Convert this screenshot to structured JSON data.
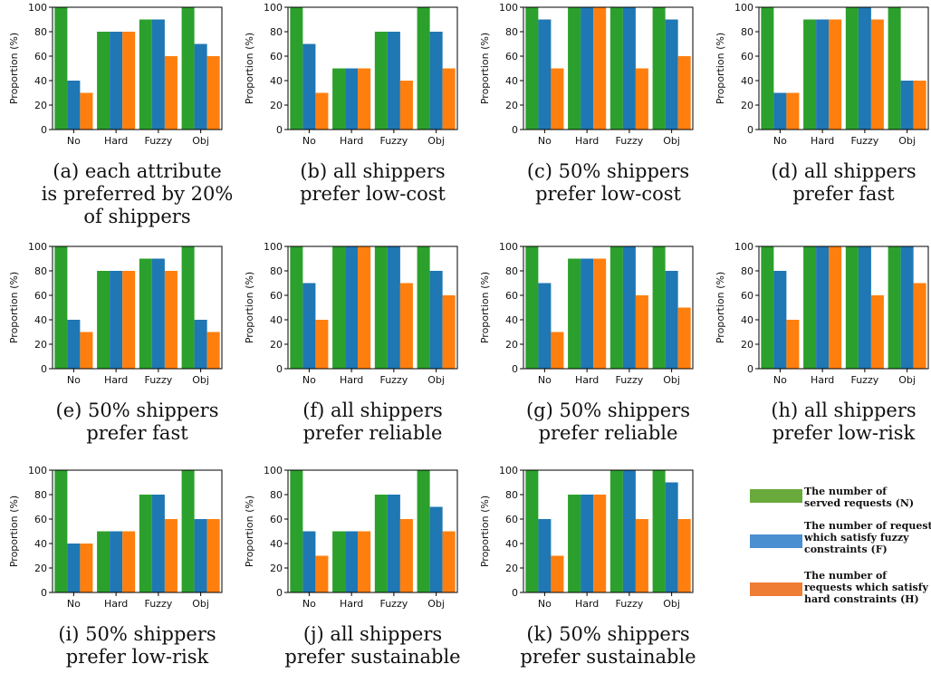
{
  "colors": {
    "N": "#2ca02c",
    "F": "#1f77b4",
    "H": "#ff7f0e",
    "axis": "#000000"
  },
  "legend": [
    {
      "key": "N",
      "line1": "The number of",
      "line2": "served requests (N)",
      "line3": "",
      "color": "#6aaa3c"
    },
    {
      "key": "F",
      "line1": "The number of requests",
      "line2": "which satisfy fuzzy",
      "line3": "constraints (F)",
      "color": "#4a8fd0"
    },
    {
      "key": "H",
      "line1": "The number of",
      "line2": "requests which satisfy",
      "line3": "hard constraints (H)",
      "color": "#ef7d33"
    }
  ],
  "chart_data": [
    {
      "type": "bar",
      "ylabel": "Proportion (%)",
      "ylim": [
        0,
        100
      ],
      "yticks": [
        0,
        20,
        40,
        60,
        80,
        100
      ],
      "categories": [
        "No",
        "Hard",
        "Fuzzy",
        "Obj"
      ],
      "caption": [
        "(a) each attribute",
        "is preferred by 20%",
        "of shippers"
      ],
      "series": [
        {
          "key": "N",
          "values": [
            100,
            80,
            90,
            100
          ]
        },
        {
          "key": "F",
          "values": [
            40,
            80,
            90,
            70
          ]
        },
        {
          "key": "H",
          "values": [
            30,
            80,
            60,
            60
          ]
        }
      ]
    },
    {
      "type": "bar",
      "ylabel": "Proportion (%)",
      "ylim": [
        0,
        100
      ],
      "yticks": [
        0,
        20,
        40,
        60,
        80,
        100
      ],
      "categories": [
        "No",
        "Hard",
        "Fuzzy",
        "Obj"
      ],
      "caption": [
        "(b) all shippers",
        "prefer low-cost"
      ],
      "series": [
        {
          "key": "N",
          "values": [
            100,
            50,
            80,
            100
          ]
        },
        {
          "key": "F",
          "values": [
            70,
            50,
            80,
            80
          ]
        },
        {
          "key": "H",
          "values": [
            30,
            50,
            40,
            50
          ]
        }
      ]
    },
    {
      "type": "bar",
      "ylabel": "Proportion (%)",
      "ylim": [
        0,
        100
      ],
      "yticks": [
        0,
        20,
        40,
        60,
        80,
        100
      ],
      "categories": [
        "No",
        "Hard",
        "Fuzzy",
        "Obj"
      ],
      "caption": [
        "(c) 50% shippers",
        "prefer low-cost"
      ],
      "series": [
        {
          "key": "N",
          "values": [
            100,
            100,
            100,
            100
          ]
        },
        {
          "key": "F",
          "values": [
            90,
            100,
            100,
            90
          ]
        },
        {
          "key": "H",
          "values": [
            50,
            100,
            50,
            60
          ]
        }
      ]
    },
    {
      "type": "bar",
      "ylabel": "Proportion (%)",
      "ylim": [
        0,
        100
      ],
      "yticks": [
        0,
        20,
        40,
        60,
        80,
        100
      ],
      "categories": [
        "No",
        "Hard",
        "Fuzzy",
        "Obj"
      ],
      "caption": [
        "(d) all shippers",
        "prefer fast"
      ],
      "series": [
        {
          "key": "N",
          "values": [
            100,
            90,
            100,
            100
          ]
        },
        {
          "key": "F",
          "values": [
            30,
            90,
            100,
            40
          ]
        },
        {
          "key": "H",
          "values": [
            30,
            90,
            90,
            40
          ]
        }
      ]
    },
    {
      "type": "bar",
      "ylabel": "Proportion (%)",
      "ylim": [
        0,
        100
      ],
      "yticks": [
        0,
        20,
        40,
        60,
        80,
        100
      ],
      "categories": [
        "No",
        "Hard",
        "Fuzzy",
        "Obj"
      ],
      "caption": [
        "(e) 50% shippers",
        "prefer fast"
      ],
      "series": [
        {
          "key": "N",
          "values": [
            100,
            80,
            90,
            100
          ]
        },
        {
          "key": "F",
          "values": [
            40,
            80,
            90,
            40
          ]
        },
        {
          "key": "H",
          "values": [
            30,
            80,
            80,
            30
          ]
        }
      ]
    },
    {
      "type": "bar",
      "ylabel": "Proportion (%)",
      "ylim": [
        0,
        100
      ],
      "yticks": [
        0,
        20,
        40,
        60,
        80,
        100
      ],
      "categories": [
        "No",
        "Hard",
        "Fuzzy",
        "Obj"
      ],
      "caption": [
        "(f) all shippers",
        "prefer reliable"
      ],
      "series": [
        {
          "key": "N",
          "values": [
            100,
            100,
            100,
            100
          ]
        },
        {
          "key": "F",
          "values": [
            70,
            100,
            100,
            80
          ]
        },
        {
          "key": "H",
          "values": [
            40,
            100,
            70,
            60
          ]
        }
      ]
    },
    {
      "type": "bar",
      "ylabel": "Proportion (%)",
      "ylim": [
        0,
        100
      ],
      "yticks": [
        0,
        20,
        40,
        60,
        80,
        100
      ],
      "categories": [
        "No",
        "Hard",
        "Fuzzy",
        "Obj"
      ],
      "caption": [
        "(g) 50% shippers",
        "prefer reliable"
      ],
      "series": [
        {
          "key": "N",
          "values": [
            100,
            90,
            100,
            100
          ]
        },
        {
          "key": "F",
          "values": [
            70,
            90,
            100,
            80
          ]
        },
        {
          "key": "H",
          "values": [
            30,
            90,
            60,
            50
          ]
        }
      ]
    },
    {
      "type": "bar",
      "ylabel": "Proportion (%)",
      "ylim": [
        0,
        100
      ],
      "yticks": [
        0,
        20,
        40,
        60,
        80,
        100
      ],
      "categories": [
        "No",
        "Hard",
        "Fuzzy",
        "Obj"
      ],
      "caption": [
        "(h) all shippers",
        "prefer low-risk"
      ],
      "series": [
        {
          "key": "N",
          "values": [
            100,
            100,
            100,
            100
          ]
        },
        {
          "key": "F",
          "values": [
            80,
            100,
            100,
            100
          ]
        },
        {
          "key": "H",
          "values": [
            40,
            100,
            60,
            70
          ]
        }
      ]
    },
    {
      "type": "bar",
      "ylabel": "Proportion (%)",
      "ylim": [
        0,
        100
      ],
      "yticks": [
        0,
        20,
        40,
        60,
        80,
        100
      ],
      "categories": [
        "No",
        "Hard",
        "Fuzzy",
        "Obj"
      ],
      "caption": [
        "(i) 50% shippers",
        "prefer low-risk"
      ],
      "series": [
        {
          "key": "N",
          "values": [
            100,
            50,
            80,
            100
          ]
        },
        {
          "key": "F",
          "values": [
            40,
            50,
            80,
            60
          ]
        },
        {
          "key": "H",
          "values": [
            40,
            50,
            60,
            60
          ]
        }
      ]
    },
    {
      "type": "bar",
      "ylabel": "Proportion (%)",
      "ylim": [
        0,
        100
      ],
      "yticks": [
        0,
        20,
        40,
        60,
        80,
        100
      ],
      "categories": [
        "No",
        "Hard",
        "Fuzzy",
        "Obj"
      ],
      "caption": [
        "(j) all shippers",
        "prefer sustainable"
      ],
      "series": [
        {
          "key": "N",
          "values": [
            100,
            50,
            80,
            100
          ]
        },
        {
          "key": "F",
          "values": [
            50,
            50,
            80,
            70
          ]
        },
        {
          "key": "H",
          "values": [
            30,
            50,
            60,
            50
          ]
        }
      ]
    },
    {
      "type": "bar",
      "ylabel": "Proportion (%)",
      "ylim": [
        0,
        100
      ],
      "yticks": [
        0,
        20,
        40,
        60,
        80,
        100
      ],
      "categories": [
        "No",
        "Hard",
        "Fuzzy",
        "Obj"
      ],
      "caption": [
        "(k) 50% shippers",
        "prefer sustainable"
      ],
      "series": [
        {
          "key": "N",
          "values": [
            100,
            80,
            100,
            100
          ]
        },
        {
          "key": "F",
          "values": [
            60,
            80,
            100,
            90
          ]
        },
        {
          "key": "H",
          "values": [
            30,
            80,
            60,
            60
          ]
        }
      ]
    }
  ]
}
